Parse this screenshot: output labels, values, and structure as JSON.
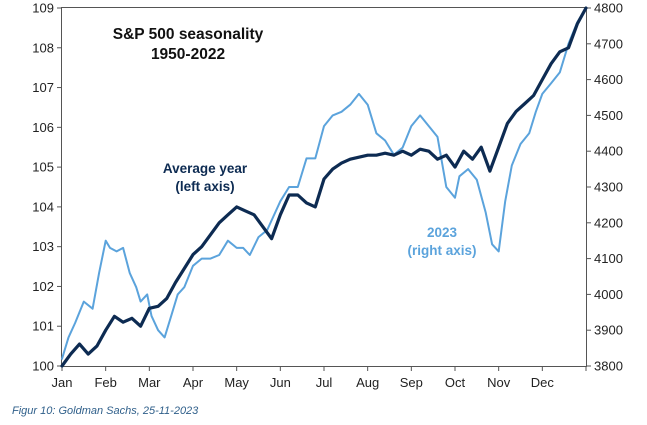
{
  "caption": "Figur 10: Goldman Sachs, 25-11-2023",
  "chart_data": {
    "type": "line",
    "title": "S&P 500 seasonality",
    "subtitle": "1950-2022",
    "x": [
      "Jan",
      "Feb",
      "Mar",
      "Apr",
      "May",
      "Jun",
      "Jul",
      "Aug",
      "Sep",
      "Oct",
      "Nov",
      "Dec"
    ],
    "xlim": [
      0,
      12
    ],
    "left_axis": {
      "ylim": [
        100,
        109
      ],
      "ticks": [
        100,
        101,
        102,
        103,
        104,
        105,
        106,
        107,
        108,
        109
      ]
    },
    "right_axis": {
      "ylim": [
        3800,
        4800
      ],
      "ticks": [
        3800,
        3900,
        4000,
        4100,
        4200,
        4300,
        4400,
        4500,
        4600,
        4700,
        4800
      ]
    },
    "grid": false,
    "series": [
      {
        "name": "Average year (left axis)",
        "axis": "left",
        "color": "#0d2b52",
        "points": [
          [
            0.0,
            100.0
          ],
          [
            0.2,
            100.3
          ],
          [
            0.4,
            100.55
          ],
          [
            0.6,
            100.3
          ],
          [
            0.8,
            100.5
          ],
          [
            1.0,
            100.9
          ],
          [
            1.2,
            101.25
          ],
          [
            1.4,
            101.1
          ],
          [
            1.6,
            101.2
          ],
          [
            1.8,
            101.0
          ],
          [
            2.0,
            101.45
          ],
          [
            2.2,
            101.5
          ],
          [
            2.4,
            101.7
          ],
          [
            2.6,
            102.1
          ],
          [
            2.8,
            102.45
          ],
          [
            3.0,
            102.8
          ],
          [
            3.2,
            103.0
          ],
          [
            3.4,
            103.3
          ],
          [
            3.6,
            103.6
          ],
          [
            3.8,
            103.8
          ],
          [
            4.0,
            104.0
          ],
          [
            4.2,
            103.9
          ],
          [
            4.4,
            103.8
          ],
          [
            4.6,
            103.5
          ],
          [
            4.8,
            103.2
          ],
          [
            5.0,
            103.8
          ],
          [
            5.2,
            104.3
          ],
          [
            5.4,
            104.3
          ],
          [
            5.6,
            104.1
          ],
          [
            5.8,
            104.0
          ],
          [
            6.0,
            104.7
          ],
          [
            6.2,
            104.95
          ],
          [
            6.4,
            105.1
          ],
          [
            6.6,
            105.2
          ],
          [
            6.8,
            105.25
          ],
          [
            7.0,
            105.3
          ],
          [
            7.2,
            105.3
          ],
          [
            7.4,
            105.35
          ],
          [
            7.6,
            105.3
          ],
          [
            7.8,
            105.4
          ],
          [
            8.0,
            105.3
          ],
          [
            8.2,
            105.45
          ],
          [
            8.4,
            105.4
          ],
          [
            8.6,
            105.2
          ],
          [
            8.8,
            105.3
          ],
          [
            9.0,
            105.0
          ],
          [
            9.2,
            105.4
          ],
          [
            9.4,
            105.2
          ],
          [
            9.6,
            105.5
          ],
          [
            9.8,
            104.9
          ],
          [
            10.0,
            105.5
          ],
          [
            10.2,
            106.1
          ],
          [
            10.4,
            106.4
          ],
          [
            10.6,
            106.6
          ],
          [
            10.8,
            106.8
          ],
          [
            11.0,
            107.2
          ],
          [
            11.2,
            107.6
          ],
          [
            11.4,
            107.9
          ],
          [
            11.6,
            108.0
          ],
          [
            11.8,
            108.6
          ],
          [
            12.0,
            109.0
          ]
        ]
      },
      {
        "name": "2023 (right axis)",
        "axis": "right",
        "color": "#5ba3dc",
        "points": [
          [
            0.0,
            3820
          ],
          [
            0.15,
            3880
          ],
          [
            0.3,
            3920
          ],
          [
            0.5,
            3980
          ],
          [
            0.7,
            3960
          ],
          [
            0.85,
            4060
          ],
          [
            1.0,
            4150
          ],
          [
            1.1,
            4130
          ],
          [
            1.25,
            4120
          ],
          [
            1.4,
            4130
          ],
          [
            1.55,
            4060
          ],
          [
            1.7,
            4020
          ],
          [
            1.8,
            3980
          ],
          [
            1.95,
            4000
          ],
          [
            2.05,
            3940
          ],
          [
            2.2,
            3900
          ],
          [
            2.35,
            3880
          ],
          [
            2.5,
            3940
          ],
          [
            2.65,
            4000
          ],
          [
            2.8,
            4020
          ],
          [
            3.0,
            4080
          ],
          [
            3.2,
            4100
          ],
          [
            3.4,
            4100
          ],
          [
            3.6,
            4110
          ],
          [
            3.8,
            4150
          ],
          [
            4.0,
            4130
          ],
          [
            4.15,
            4130
          ],
          [
            4.3,
            4110
          ],
          [
            4.5,
            4160
          ],
          [
            4.7,
            4180
          ],
          [
            5.0,
            4260
          ],
          [
            5.2,
            4300
          ],
          [
            5.4,
            4300
          ],
          [
            5.6,
            4380
          ],
          [
            5.8,
            4380
          ],
          [
            6.0,
            4470
          ],
          [
            6.2,
            4500
          ],
          [
            6.4,
            4510
          ],
          [
            6.6,
            4530
          ],
          [
            6.8,
            4560
          ],
          [
            7.0,
            4530
          ],
          [
            7.2,
            4450
          ],
          [
            7.4,
            4430
          ],
          [
            7.6,
            4390
          ],
          [
            7.8,
            4410
          ],
          [
            8.0,
            4470
          ],
          [
            8.2,
            4500
          ],
          [
            8.4,
            4470
          ],
          [
            8.6,
            4440
          ],
          [
            8.8,
            4300
          ],
          [
            9.0,
            4270
          ],
          [
            9.1,
            4330
          ],
          [
            9.3,
            4350
          ],
          [
            9.5,
            4320
          ],
          [
            9.7,
            4230
          ],
          [
            9.85,
            4140
          ],
          [
            10.0,
            4120
          ],
          [
            10.15,
            4260
          ],
          [
            10.3,
            4360
          ],
          [
            10.5,
            4420
          ],
          [
            10.7,
            4450
          ],
          [
            10.85,
            4510
          ],
          [
            11.0,
            4560
          ],
          [
            11.2,
            4590
          ],
          [
            11.4,
            4620
          ],
          [
            11.6,
            4700
          ],
          [
            11.8,
            4760
          ],
          [
            12.0,
            4800
          ]
        ]
      }
    ],
    "annotations": [
      {
        "text": "Average year",
        "series": "Average year (left axis)"
      },
      {
        "text": "(left axis)",
        "series": "Average year (left axis)"
      },
      {
        "text": "2023",
        "series": "2023 (right axis)"
      },
      {
        "text": "(right axis)",
        "series": "2023 (right axis)"
      }
    ]
  }
}
